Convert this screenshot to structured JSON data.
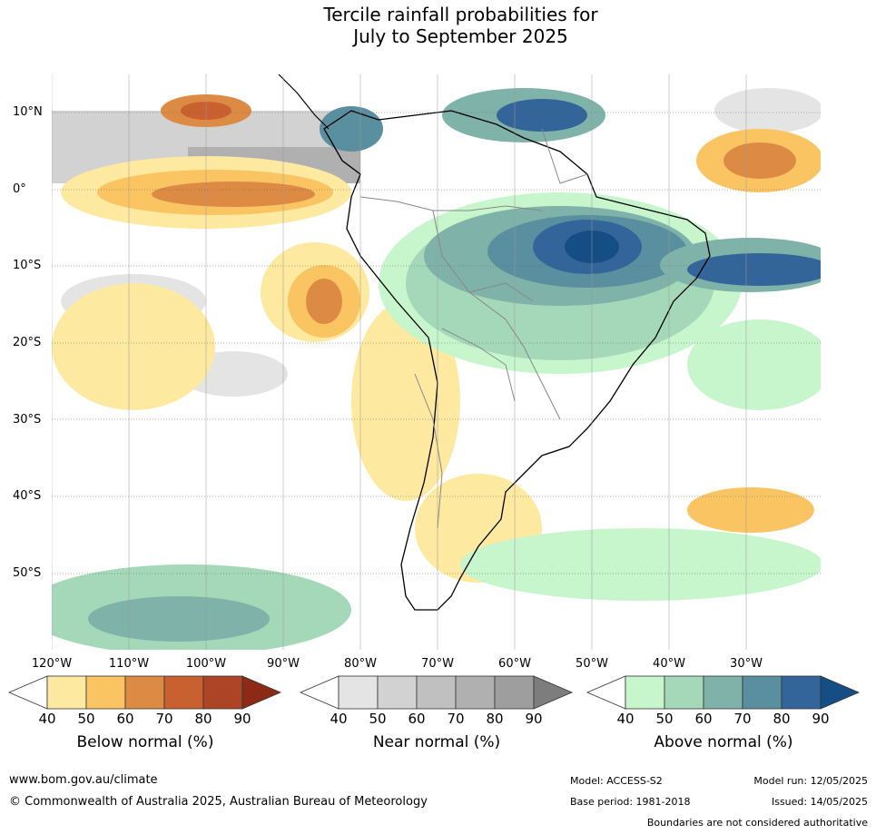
{
  "title": {
    "line1": "Tercile rainfall probabilities for",
    "line2": "July to September 2025"
  },
  "map": {
    "lat_labels": [
      "10°N",
      "0°",
      "10°S",
      "20°S",
      "30°S",
      "40°S",
      "50°S"
    ],
    "lon_labels": [
      "120°W",
      "110°W",
      "100°W",
      "90°W",
      "80°W",
      "70°W",
      "60°W",
      "50°W",
      "40°W",
      "30°W"
    ],
    "ocean_color": "#ffffff",
    "coastline_color": "#000000",
    "border_color": "#888888"
  },
  "colorbars": [
    {
      "name": "below",
      "label": "Below normal (%)",
      "ticks": [
        "40",
        "50",
        "60",
        "70",
        "80",
        "90"
      ],
      "colors": [
        "#ffffff",
        "#fde9a0",
        "#fac463",
        "#dd8b44",
        "#c9602f",
        "#ad4425",
        "#8c2a16"
      ]
    },
    {
      "name": "near",
      "label": "Near normal (%)",
      "ticks": [
        "40",
        "50",
        "60",
        "70",
        "80",
        "90"
      ],
      "colors": [
        "#ffffff",
        "#e4e4e4",
        "#d2d2d2",
        "#c0c0c0",
        "#b0b0b0",
        "#9e9e9e",
        "#7d7d7d"
      ]
    },
    {
      "name": "above",
      "label": "Above normal (%)",
      "ticks": [
        "40",
        "50",
        "60",
        "70",
        "80",
        "90"
      ],
      "colors": [
        "#ffffff",
        "#c7f5cc",
        "#a4d8b8",
        "#7fb2a8",
        "#5a8fa0",
        "#34659a",
        "#154e84"
      ]
    }
  ],
  "footer": {
    "url": "www.bom.gov.au/climate",
    "copyright": "© Commonwealth of Australia 2025, Australian Bureau of Meteorology",
    "model": "Model: ACCESS-S2",
    "base_period": "Base period: 1981-2018",
    "model_run": "Model run: 12/05/2025",
    "issued": "Issued: 14/05/2025",
    "disclaimer": "Boundaries are not considered authoritative"
  }
}
